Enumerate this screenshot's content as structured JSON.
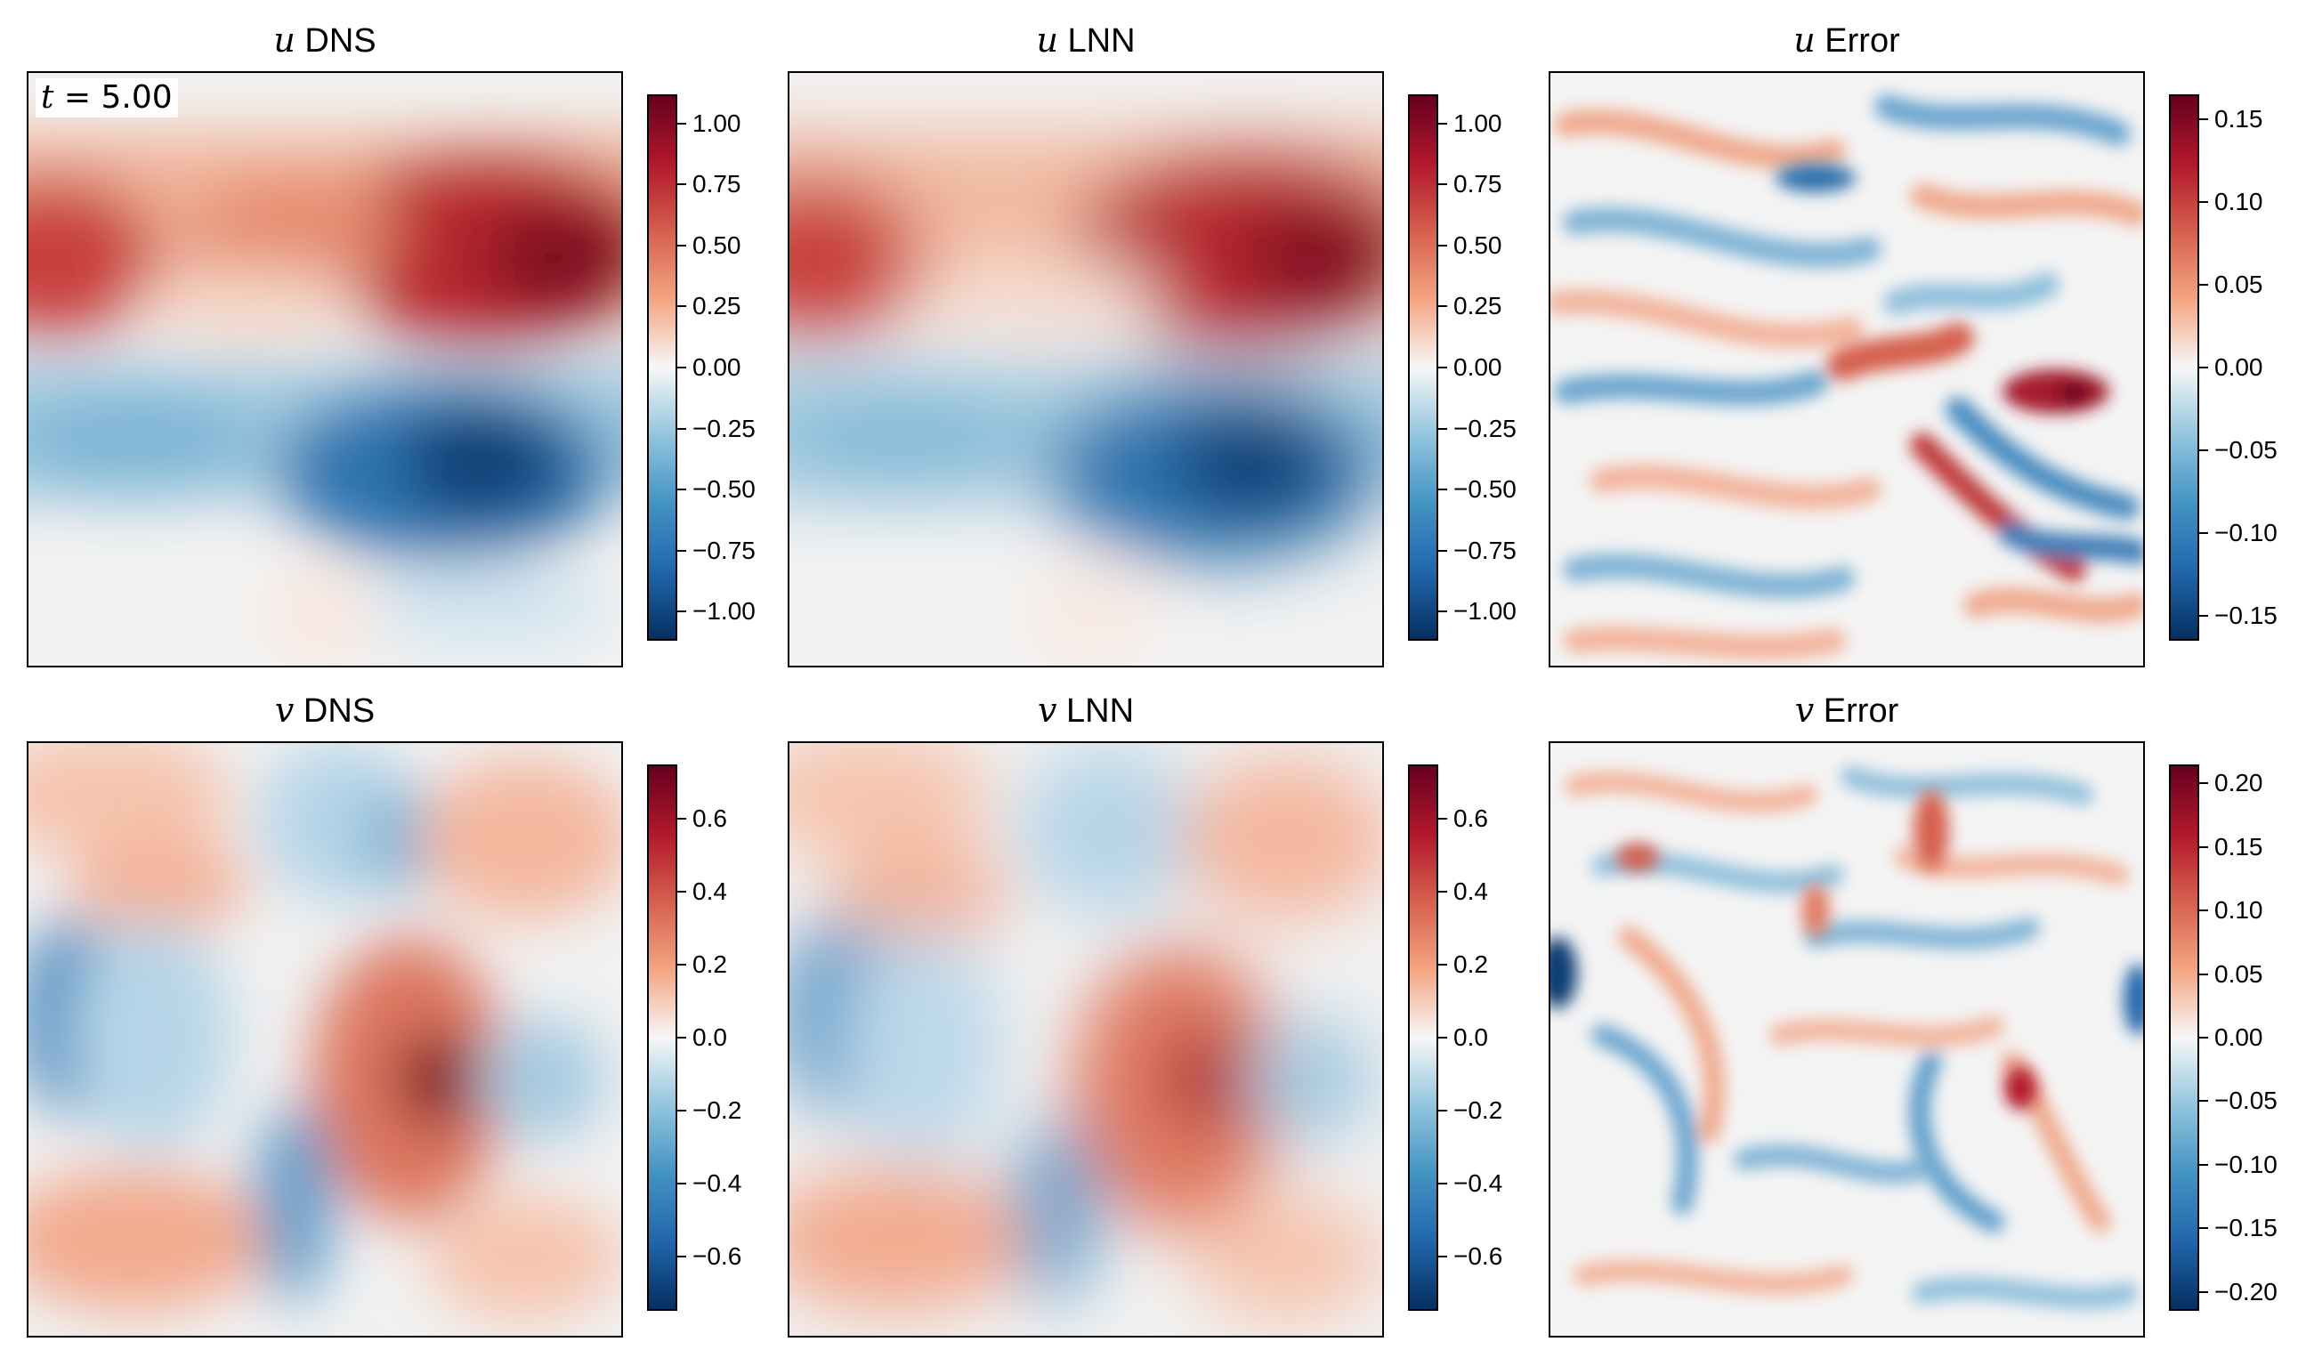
{
  "time_label": {
    "var": "t",
    "rest": " = 5.00"
  },
  "chart_data": [
    {
      "type": "heatmap",
      "variable": "u",
      "suffix": " DNS",
      "title": "u DNS",
      "colormap": "RdBu_r",
      "clim": [
        -1.12,
        1.12
      ],
      "ticks": [
        1.0,
        0.75,
        0.5,
        0.25,
        0.0,
        -0.25,
        -0.5,
        -0.75,
        -1.0
      ],
      "tick_labels": [
        "1.00",
        "0.75",
        "0.50",
        "0.25",
        "0.00",
        "−0.25",
        "−0.50",
        "−0.75",
        "−1.00"
      ]
    },
    {
      "type": "heatmap",
      "variable": "u",
      "suffix": " LNN",
      "title": "u LNN",
      "colormap": "RdBu_r",
      "clim": [
        -1.12,
        1.12
      ],
      "ticks": [
        1.0,
        0.75,
        0.5,
        0.25,
        0.0,
        -0.25,
        -0.5,
        -0.75,
        -1.0
      ],
      "tick_labels": [
        "1.00",
        "0.75",
        "0.50",
        "0.25",
        "0.00",
        "−0.25",
        "−0.50",
        "−0.75",
        "−1.00"
      ]
    },
    {
      "type": "heatmap",
      "variable": "u",
      "suffix": " Error",
      "title": "u Error",
      "colormap": "RdBu_r",
      "clim": [
        -0.165,
        0.165
      ],
      "ticks": [
        0.15,
        0.1,
        0.05,
        0.0,
        -0.05,
        -0.1,
        -0.15
      ],
      "tick_labels": [
        "0.15",
        "0.10",
        "0.05",
        "0.00",
        "−0.05",
        "−0.10",
        "−0.15"
      ]
    },
    {
      "type": "heatmap",
      "variable": "v",
      "suffix": " DNS",
      "title": "v DNS",
      "colormap": "RdBu_r",
      "clim": [
        -0.75,
        0.75
      ],
      "ticks": [
        0.6,
        0.4,
        0.2,
        0.0,
        -0.2,
        -0.4,
        -0.6
      ],
      "tick_labels": [
        "0.6",
        "0.4",
        "0.2",
        "0.0",
        "−0.2",
        "−0.4",
        "−0.6"
      ]
    },
    {
      "type": "heatmap",
      "variable": "v",
      "suffix": " LNN",
      "title": "v LNN",
      "colormap": "RdBu_r",
      "clim": [
        -0.75,
        0.75
      ],
      "ticks": [
        0.6,
        0.4,
        0.2,
        0.0,
        -0.2,
        -0.4,
        -0.6
      ],
      "tick_labels": [
        "0.6",
        "0.4",
        "0.2",
        "0.0",
        "−0.2",
        "−0.4",
        "−0.6"
      ]
    },
    {
      "type": "heatmap",
      "variable": "v",
      "suffix": " Error",
      "title": "v Error",
      "colormap": "RdBu_r",
      "clim": [
        -0.215,
        0.215
      ],
      "ticks": [
        0.2,
        0.15,
        0.1,
        0.05,
        0.0,
        -0.05,
        -0.1,
        -0.15,
        -0.2
      ],
      "tick_labels": [
        "0.20",
        "0.15",
        "0.10",
        "0.05",
        "0.00",
        "−0.05",
        "−0.10",
        "−0.15",
        "−0.20"
      ]
    }
  ]
}
